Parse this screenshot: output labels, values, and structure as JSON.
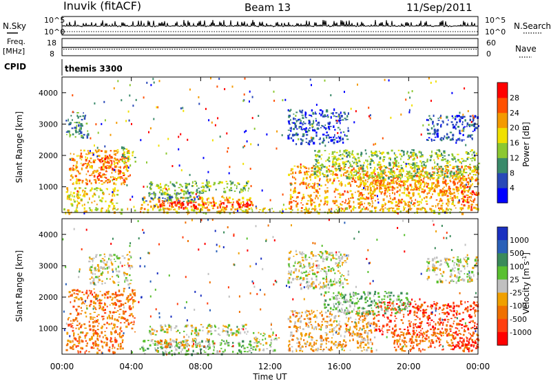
{
  "header": {
    "station": "Inuvik  (fitACF)",
    "beam": "Beam 13",
    "date": "11/Sep/2011"
  },
  "labels": {
    "nsky": "N.Sky",
    "nsearch": "N.Search",
    "freq": "Freq.",
    "mhz": "[MHz]",
    "nave": "Nave",
    "cpid": "CPID",
    "cpid_value": "themis 3300",
    "slant_range": "Slant Range [km]",
    "time_ut": "Time UT",
    "power_label": "Power [dB]",
    "velocity_label": "Velocity [m s",
    "velocity_exp": "-1",
    "velocity_close": "]"
  },
  "colors": {
    "power": [
      "#0000ff",
      "#2848b8",
      "#3a8a6a",
      "#8cc830",
      "#f0e000",
      "#f49a00",
      "#ff5000",
      "#ff0000"
    ],
    "velocity": [
      "#1a30c0",
      "#2a60b8",
      "#3a8a5a",
      "#5ac030",
      "#c0c0c0",
      "#f0a000",
      "#f07000",
      "#ff4010",
      "#ff0000"
    ]
  },
  "chart_data": [
    {
      "type": "line",
      "name": "N.Sky / N.Search",
      "y_ticks": [
        "10^5",
        "10^0"
      ],
      "x": [
        0,
        24
      ],
      "values_description_note": ""
    },
    {
      "type": "line",
      "name": "Freq / Nave",
      "left_ticks": [
        "18",
        "8"
      ],
      "right_ticks": [
        "60",
        "0"
      ]
    },
    {
      "type": "heatmap",
      "quantity": "Power",
      "x_ticks": [
        "00:00",
        "04:00",
        "08:00",
        "12:00",
        "16:00",
        "20:00",
        "00:00"
      ],
      "xlim": [
        0,
        24
      ],
      "y_ticks": [
        "1000",
        "2000",
        "3000",
        "4000"
      ],
      "ylim": [
        180,
        4500
      ],
      "colorbar_ticks": [
        "4",
        "8",
        "12",
        "16",
        "20",
        "24",
        "28"
      ],
      "colorbar_range": [
        0,
        32
      ],
      "regions": [
        {
          "t0": 0.2,
          "t1": 1.5,
          "r0": 2600,
          "r1": 3400,
          "lvl": 2
        },
        {
          "t0": 0.4,
          "t1": 3.8,
          "r0": 1100,
          "r1": 2200,
          "lvl": 5
        },
        {
          "t0": 2.0,
          "t1": 3.6,
          "r0": 1200,
          "r1": 2000,
          "lvl": 6
        },
        {
          "t0": 0.2,
          "t1": 3.2,
          "r0": 400,
          "r1": 1000,
          "lvl": 4
        },
        {
          "t0": 3.4,
          "t1": 4.2,
          "r0": 1700,
          "r1": 2300,
          "lvl": 3
        },
        {
          "t0": 4.5,
          "t1": 11.0,
          "r0": 300,
          "r1": 700,
          "lvl": 5
        },
        {
          "t0": 5.5,
          "t1": 10.8,
          "r0": 350,
          "r1": 550,
          "lvl": 7
        },
        {
          "t0": 5.0,
          "t1": 8.5,
          "r0": 800,
          "r1": 1200,
          "lvl": 3
        },
        {
          "t0": 8.0,
          "t1": 10.8,
          "r0": 850,
          "r1": 1200,
          "lvl": 3
        },
        {
          "t0": 4.6,
          "t1": 8.0,
          "r0": 550,
          "r1": 850,
          "lvl": 2
        },
        {
          "t0": 13.0,
          "t1": 16.5,
          "r0": 2400,
          "r1": 3500,
          "lvl": 1
        },
        {
          "t0": 13.0,
          "t1": 24.0,
          "r0": 300,
          "r1": 1700,
          "lvl": 5
        },
        {
          "t0": 17.0,
          "t1": 23.5,
          "r0": 800,
          "r1": 1400,
          "lvl": 5
        },
        {
          "t0": 14.5,
          "t1": 24.0,
          "r0": 1300,
          "r1": 2200,
          "lvl": 3
        },
        {
          "t0": 23.0,
          "t1": 24.0,
          "r0": 300,
          "r1": 900,
          "lvl": 6
        },
        {
          "t0": 21.0,
          "t1": 24.0,
          "r0": 2500,
          "r1": 3300,
          "lvl": 1
        },
        {
          "t0": 0.0,
          "t1": 24.0,
          "r0": 180,
          "r1": 350,
          "lvl": 4
        }
      ]
    },
    {
      "type": "heatmap",
      "quantity": "Velocity",
      "x_ticks": [
        "00:00",
        "04:00",
        "08:00",
        "12:00",
        "16:00",
        "20:00",
        "00:00"
      ],
      "xlim": [
        0,
        24
      ],
      "y_ticks": [
        "1000",
        "2000",
        "3000",
        "4000"
      ],
      "ylim": [
        180,
        4500
      ],
      "colorbar_ticks": [
        "1000",
        "500",
        "100",
        "25",
        "-25",
        "-100",
        "-500",
        "-1000"
      ],
      "regions": [
        {
          "t0": 0.3,
          "t1": 4.2,
          "r0": 900,
          "r1": 2300,
          "lvl": 6
        },
        {
          "t0": 1.5,
          "t1": 4.0,
          "r0": 2400,
          "r1": 3400,
          "lvl": 4
        },
        {
          "t0": 0.2,
          "t1": 3.5,
          "r0": 250,
          "r1": 900,
          "lvl": 6
        },
        {
          "t0": 4.5,
          "t1": 11.0,
          "r0": 200,
          "r1": 650,
          "lvl": 3
        },
        {
          "t0": 5.0,
          "t1": 8.5,
          "r0": 450,
          "r1": 700,
          "lvl": 5
        },
        {
          "t0": 5.0,
          "t1": 10.8,
          "r0": 800,
          "r1": 1150,
          "lvl": 4
        },
        {
          "t0": 11.0,
          "t1": 12.5,
          "r0": 300,
          "r1": 900,
          "lvl": 4
        },
        {
          "t0": 13.0,
          "t1": 16.5,
          "r0": 2300,
          "r1": 3500,
          "lvl": 4
        },
        {
          "t0": 13.0,
          "t1": 18.0,
          "r0": 300,
          "r1": 1600,
          "lvl": 5
        },
        {
          "t0": 18.0,
          "t1": 24.0,
          "r0": 800,
          "r1": 1900,
          "lvl": 7
        },
        {
          "t0": 19.0,
          "t1": 24.0,
          "r0": 300,
          "r1": 900,
          "lvl": 6
        },
        {
          "t0": 22.5,
          "t1": 24.0,
          "r0": 300,
          "r1": 800,
          "lvl": 8
        },
        {
          "t0": 15.0,
          "t1": 20.0,
          "r0": 1500,
          "r1": 2200,
          "lvl": 3
        },
        {
          "t0": 21.0,
          "t1": 24.0,
          "r0": 2500,
          "r1": 3300,
          "lvl": 4
        }
      ]
    }
  ]
}
